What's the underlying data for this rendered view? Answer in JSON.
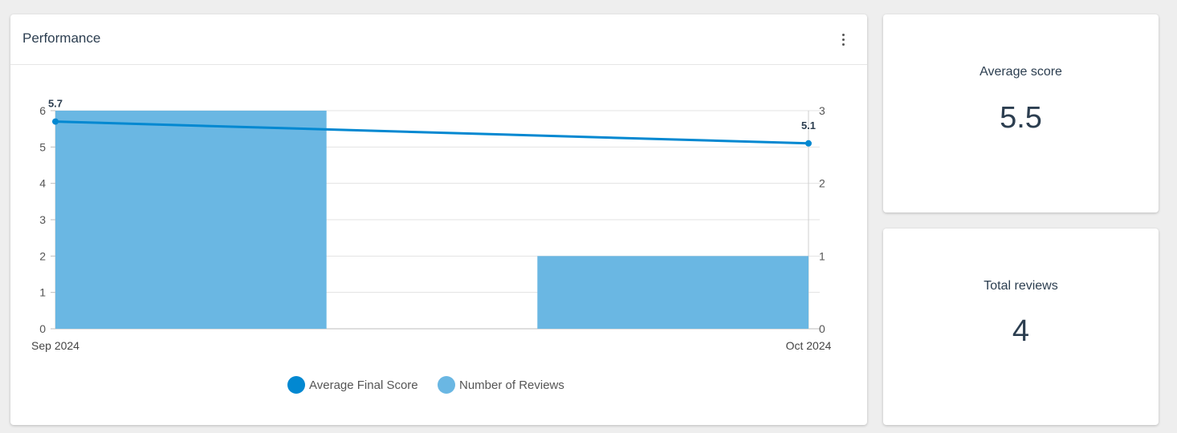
{
  "performance": {
    "title": "Performance"
  },
  "stats": {
    "average_score_label": "Average score",
    "average_score_value": "5.5",
    "total_reviews_label": "Total reviews",
    "total_reviews_value": "4"
  },
  "chart_data": {
    "type": "bar",
    "categories": [
      "Sep 2024",
      "Oct 2024"
    ],
    "series": [
      {
        "name": "Average Final Score",
        "type": "line",
        "axis": "left",
        "values": [
          5.7,
          5.1
        ],
        "data_labels": [
          "5.7",
          "5.1"
        ],
        "color": "#0288d1"
      },
      {
        "name": "Number of Reviews",
        "type": "bar",
        "axis": "right",
        "values": [
          3,
          1
        ],
        "color": "#6ab7e3"
      }
    ],
    "y_left": {
      "min": 0,
      "max": 6,
      "ticks": [
        "0",
        "1",
        "2",
        "3",
        "4",
        "5",
        "6"
      ]
    },
    "y_right": {
      "min": 0,
      "max": 3,
      "ticks": [
        "0",
        "1",
        "2",
        "3"
      ]
    },
    "grid": true,
    "legend_position": "bottom"
  }
}
